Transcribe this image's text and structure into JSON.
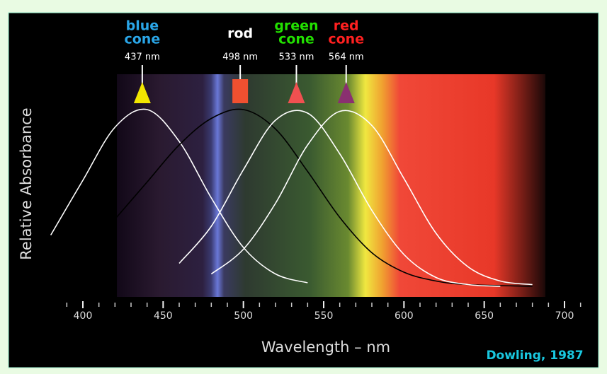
{
  "chart_data": {
    "type": "line",
    "y_label": "Relative Absorbance",
    "x_label": "Wavelength – nm",
    "credit": "Dowling, 1987",
    "xlim": [
      400,
      700
    ],
    "ylim": [
      0,
      1
    ],
    "xticks": [
      400,
      450,
      500,
      550,
      600,
      650,
      700
    ],
    "series": [
      {
        "label": [
          "blue",
          "cone"
        ],
        "color": "#2aa6e8",
        "marker": "triangle",
        "marker_color": "#f2e600",
        "peak": 437,
        "peak_label": "437 nm",
        "x": [
          380,
          400,
          420,
          440,
          460,
          480,
          500,
          520,
          540
        ],
        "values": [
          0.29,
          0.6,
          0.9,
          1.0,
          0.82,
          0.5,
          0.22,
          0.07,
          0.02
        ]
      },
      {
        "label": [
          "rod"
        ],
        "color": "#ffffff",
        "marker": "square",
        "marker_color": "#f05030",
        "peak": 498,
        "peak_label": "498 nm",
        "x": [
          420,
          440,
          460,
          480,
          500,
          520,
          540,
          560,
          580,
          600,
          620,
          640,
          680
        ],
        "values": [
          0.38,
          0.59,
          0.8,
          0.95,
          1.0,
          0.89,
          0.65,
          0.39,
          0.19,
          0.08,
          0.03,
          0.01,
          0
        ]
      },
      {
        "label": [
          "green",
          "cone"
        ],
        "color": "#22e000",
        "marker": "triangle",
        "marker_color": "#f05050",
        "peak": 533,
        "peak_label": "533 nm",
        "x": [
          460,
          480,
          500,
          520,
          540,
          560,
          580,
          600,
          620,
          640,
          660
        ],
        "values": [
          0.13,
          0.34,
          0.66,
          0.94,
          0.98,
          0.75,
          0.43,
          0.18,
          0.05,
          0.01,
          0
        ]
      },
      {
        "label": [
          "red",
          "cone"
        ],
        "color": "#ff2020",
        "marker": "triangle",
        "marker_color": "#8a3070",
        "peak": 564,
        "peak_label": "564 nm",
        "x": [
          480,
          500,
          520,
          540,
          560,
          580,
          600,
          620,
          640,
          660,
          680
        ],
        "values": [
          0.07,
          0.21,
          0.47,
          0.8,
          0.99,
          0.91,
          0.61,
          0.3,
          0.11,
          0.03,
          0.01
        ]
      }
    ]
  }
}
